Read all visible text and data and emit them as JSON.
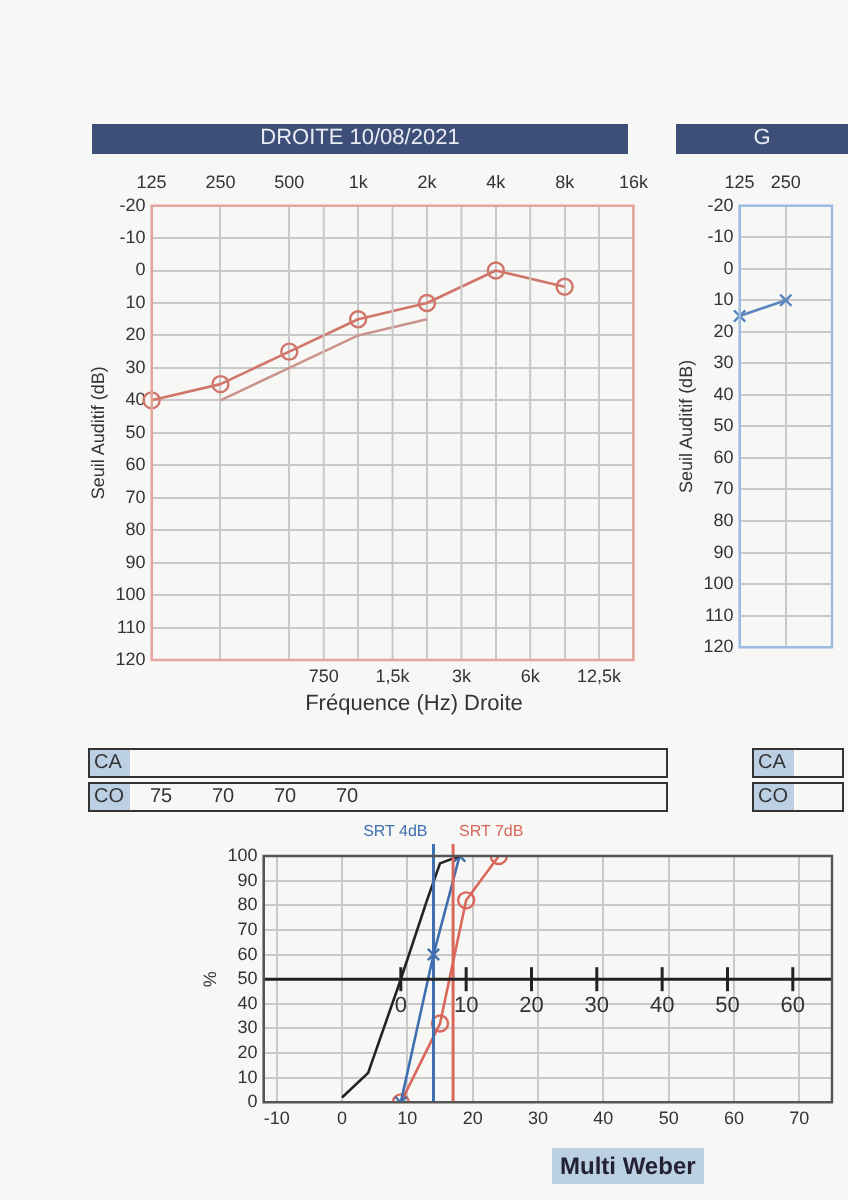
{
  "chart_data": [
    {
      "type": "line",
      "title": "DROITE 10/08/2021",
      "xlabel": "Fréquence (Hz) Droite",
      "ylabel": "Seuil Auditif (dB)",
      "categories": [
        "125",
        "250",
        "500",
        "1k",
        "2k",
        "4k",
        "8k",
        "16k"
      ],
      "ylim": [
        120,
        -20
      ],
      "yticks": [
        -20,
        -10,
        0,
        10,
        20,
        30,
        40,
        50,
        60,
        70,
        80,
        90,
        100,
        110,
        120
      ],
      "grid": true,
      "series": [
        {
          "color": "#d0756a",
          "marker": "circle",
          "values": [
            40,
            35,
            25,
            15,
            10,
            0,
            5,
            null
          ]
        },
        {
          "color": "#c9948c",
          "marker": "none",
          "values": [
            null,
            40,
            30,
            20,
            15,
            null,
            null,
            null
          ]
        }
      ],
      "annotations": [
        "750",
        "1,5k",
        "3k",
        "6k",
        "12,5k",
        "CA",
        "CO",
        "75",
        "70",
        "70",
        "70"
      ]
    },
    {
      "type": "line",
      "title": "G",
      "ylabel": "Seuil Auditif (dB)",
      "categories": [
        "125",
        "250",
        null
      ],
      "ylim": [
        120,
        -20
      ],
      "yticks": [
        -20,
        -10,
        0,
        10,
        20,
        30,
        40,
        50,
        60,
        70,
        80,
        90,
        100,
        110,
        120
      ],
      "grid": true,
      "series": [
        {
          "color": "#5a86c0",
          "marker": "cross",
          "values": [
            15,
            10,
            null
          ]
        }
      ],
      "annotations": [
        "CA",
        "CO"
      ]
    },
    {
      "type": "line",
      "ylabel": "%",
      "xlim": [
        -12,
        75
      ],
      "xticks": [
        -10,
        0,
        10,
        20,
        30,
        40,
        50,
        60,
        70
      ],
      "ylim": [
        0,
        100
      ],
      "yticks": [
        0,
        10,
        20,
        30,
        40,
        50,
        60,
        70,
        80,
        90,
        100
      ],
      "x2lim": [
        -21,
        66
      ],
      "x2ticks": [
        0,
        10,
        20,
        30,
        40,
        50,
        60
      ],
      "grid": true,
      "ref_lines": [
        {
          "axis": "x",
          "value": 14,
          "label": "SRT 4dB",
          "color": "#3f6fb0"
        },
        {
          "axis": "x",
          "value": 17,
          "label": "SRT 7dB",
          "color": "#d9675a"
        }
      ],
      "series": [
        {
          "color": "#222222",
          "marker": "none",
          "x": [
            0,
            4,
            9,
            13,
            15,
            18
          ],
          "values": [
            2,
            12,
            50,
            82,
            97,
            100
          ]
        },
        {
          "color": "#3f6fb0",
          "marker": "cross",
          "x": [
            9,
            14,
            18
          ],
          "values": [
            0,
            60,
            100
          ]
        },
        {
          "color": "#d9675a",
          "marker": "circle",
          "x": [
            9,
            15,
            19,
            24
          ],
          "values": [
            0,
            32,
            82,
            100
          ]
        }
      ],
      "annotations": [
        "Multi Weber"
      ]
    }
  ]
}
